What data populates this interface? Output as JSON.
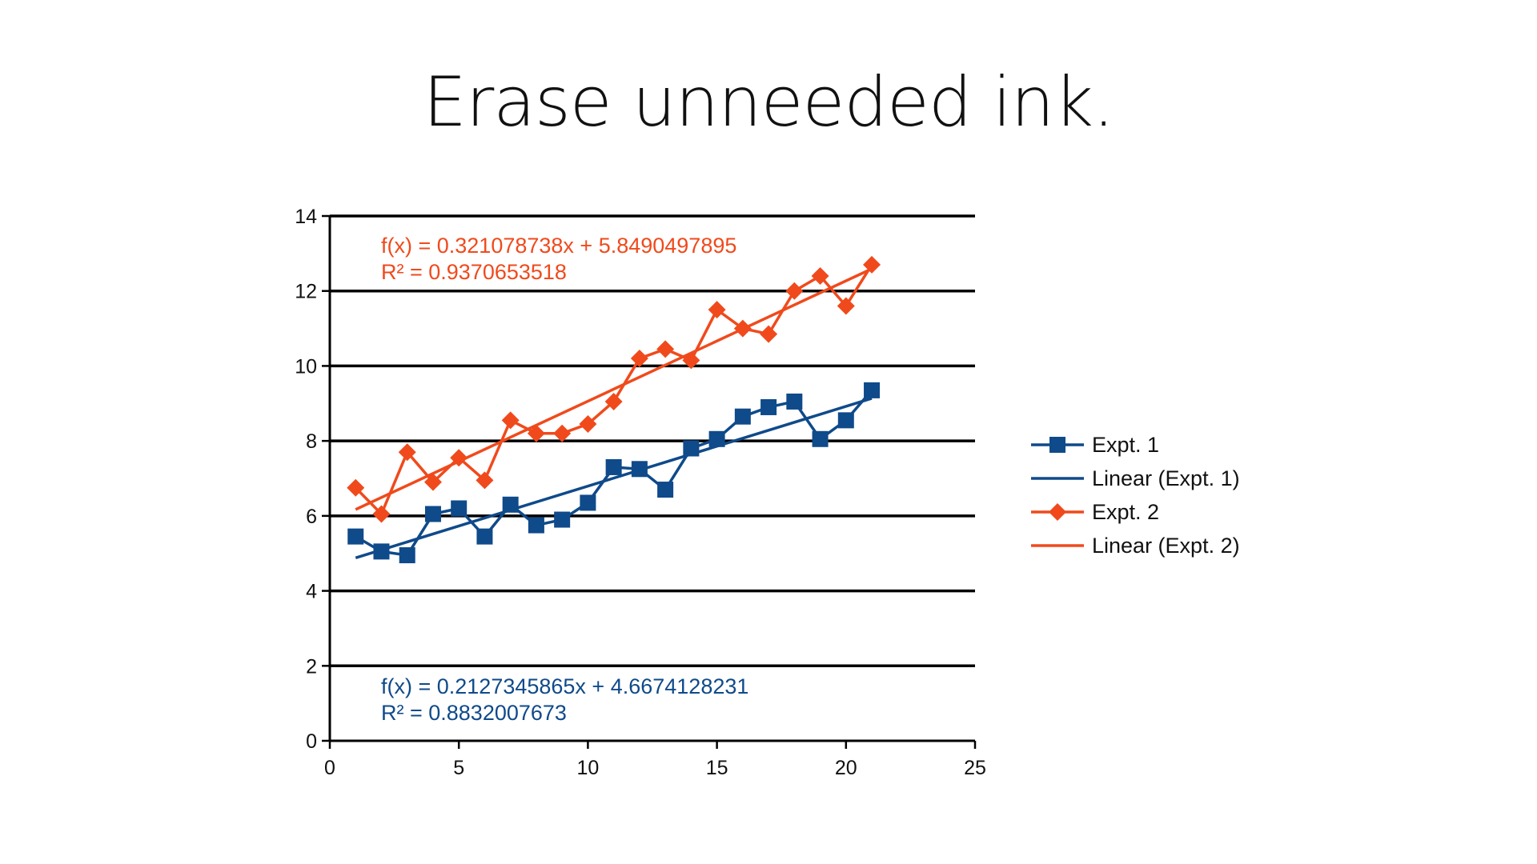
{
  "slide": {
    "title": "Erase unneeded ink."
  },
  "colors": {
    "expt1": "#0f4a8a",
    "expt2": "#f04a1c",
    "axis": "#000000",
    "grid": "#000000"
  },
  "chart_data": {
    "type": "line",
    "title": "",
    "xlabel": "",
    "ylabel": "",
    "xlim": [
      0,
      25
    ],
    "ylim": [
      0,
      14
    ],
    "x_ticks": [
      "0",
      "5",
      "10",
      "15",
      "20",
      "25"
    ],
    "y_ticks": [
      "0",
      "2",
      "4",
      "6",
      "8",
      "10",
      "12",
      "14"
    ],
    "grid": "horizontal",
    "legend_position": "right",
    "x": [
      1,
      2,
      3,
      4,
      5,
      6,
      7,
      8,
      9,
      10,
      11,
      12,
      13,
      14,
      15,
      16,
      17,
      18,
      19,
      20,
      21
    ],
    "series": [
      {
        "name": "Expt. 1",
        "marker": "square",
        "color": "#0f4a8a",
        "values": [
          5.45,
          5.05,
          4.95,
          6.05,
          6.2,
          5.45,
          6.3,
          5.75,
          5.9,
          6.35,
          7.3,
          7.25,
          6.7,
          7.8,
          8.05,
          8.65,
          8.9,
          9.05,
          8.05,
          8.55,
          9.35
        ]
      },
      {
        "name": "Expt. 2",
        "marker": "diamond",
        "color": "#f04a1c",
        "values": [
          6.75,
          6.05,
          7.7,
          6.9,
          7.55,
          6.95,
          8.55,
          8.2,
          8.2,
          8.45,
          9.05,
          10.2,
          10.45,
          10.15,
          11.5,
          11.0,
          10.85,
          12.0,
          12.4,
          11.6,
          12.7
        ]
      }
    ],
    "trendlines": [
      {
        "name": "Linear (Expt. 1)",
        "series": "Expt. 1",
        "slope": 0.2127345865,
        "intercept": 4.6674128231,
        "x_range": [
          1,
          21
        ],
        "color": "#0f4a8a",
        "equation": "f(x) = 0.2127345865x + 4.6674128231",
        "r_squared": "R² = 0.8832007673"
      },
      {
        "name": "Linear (Expt. 2)",
        "series": "Expt. 2",
        "slope": 0.321078738,
        "intercept": 5.8490497895,
        "x_range": [
          1,
          21
        ],
        "color": "#f04a1c",
        "equation": "f(x) = 0.321078738x + 5.8490497895",
        "r_squared": "R² = 0.9370653518"
      }
    ],
    "legend": [
      "Expt. 1",
      "Linear (Expt. 1)",
      "Expt. 2",
      "Linear (Expt. 2)"
    ]
  }
}
